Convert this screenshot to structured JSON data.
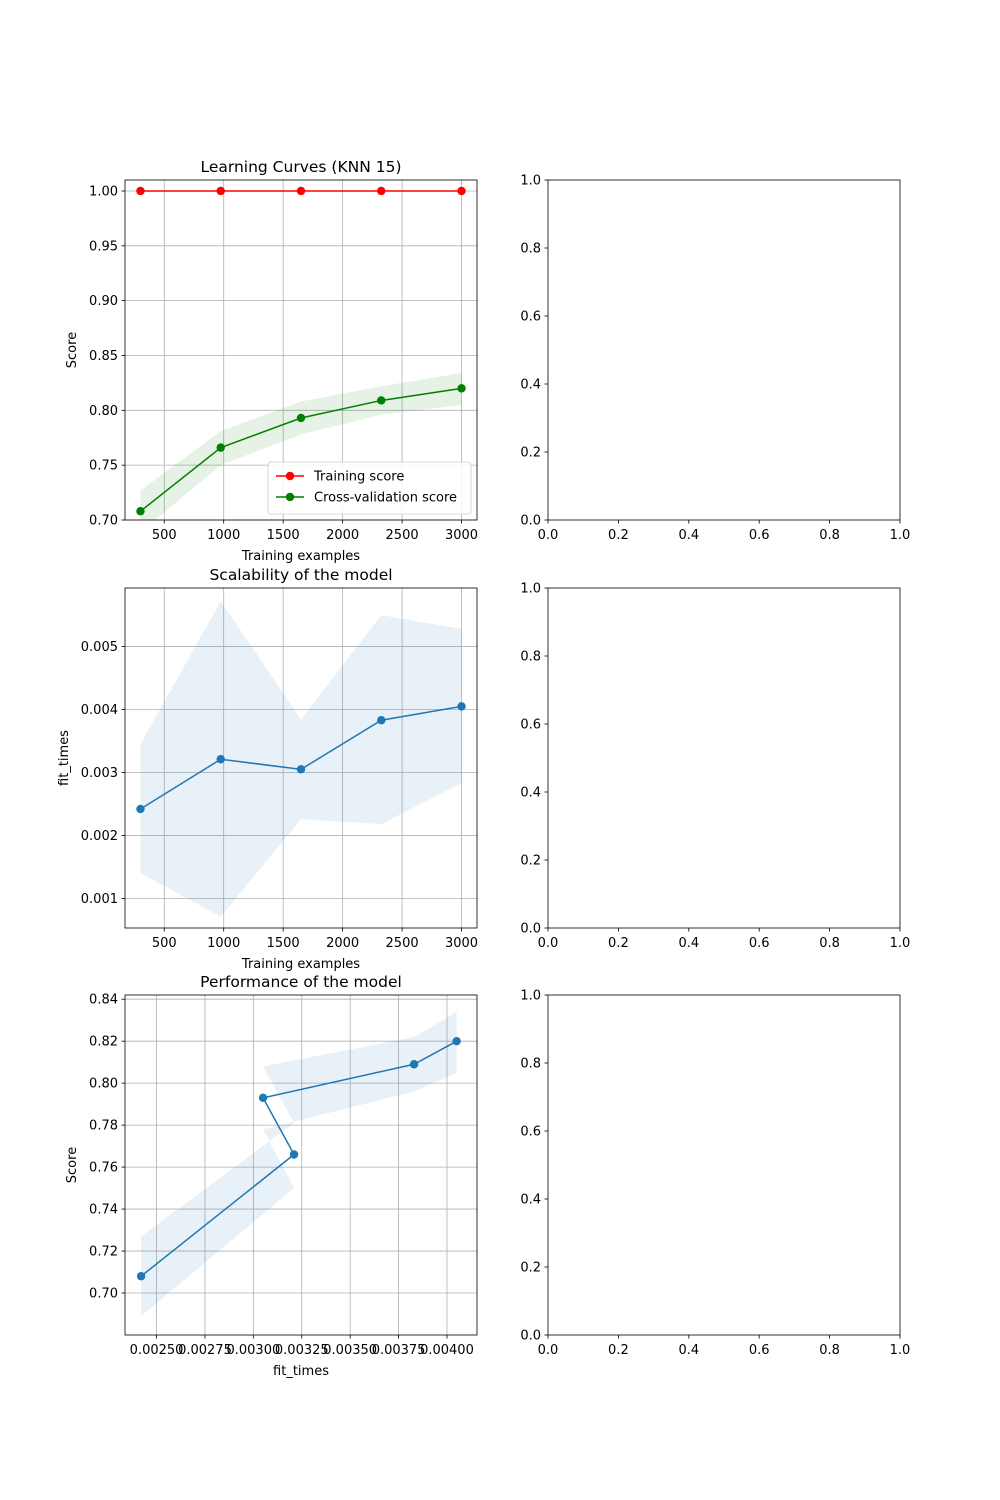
{
  "chart_data": [
    {
      "id": "learning",
      "type": "line",
      "title": "Learning Curves (KNN 15)",
      "xlabel": "Training examples",
      "ylabel": "Score",
      "xlim": [
        170,
        3130
      ],
      "ylim": [
        0.7,
        1.01
      ],
      "xticks": [
        500,
        1000,
        1500,
        2000,
        2500,
        3000
      ],
      "xtick_labels": [
        "500",
        "1000",
        "1500",
        "2000",
        "2500",
        "3000"
      ],
      "yticks": [
        0.7,
        0.75,
        0.8,
        0.85,
        0.9,
        0.95,
        1.0
      ],
      "ytick_labels": [
        "0.70",
        "0.75",
        "0.80",
        "0.85",
        "0.90",
        "0.95",
        "1.00"
      ],
      "grid": true,
      "legend": "lower-right",
      "series": [
        {
          "name": "Training score",
          "color": "#ff0000",
          "x": [
            300,
            975,
            1650,
            2325,
            3000
          ],
          "y": [
            1.0,
            1.0,
            1.0,
            1.0,
            1.0
          ],
          "band_low": [
            1.0,
            1.0,
            1.0,
            1.0,
            1.0
          ],
          "band_high": [
            1.0,
            1.0,
            1.0,
            1.0,
            1.0
          ]
        },
        {
          "name": "Cross-validation score",
          "color": "#008000",
          "x": [
            300,
            975,
            1650,
            2325,
            3000
          ],
          "y": [
            0.708,
            0.766,
            0.793,
            0.809,
            0.82
          ],
          "band_low": [
            0.689,
            0.75,
            0.778,
            0.796,
            0.805
          ],
          "band_high": [
            0.727,
            0.781,
            0.808,
            0.822,
            0.834
          ]
        }
      ]
    },
    {
      "id": "scalability",
      "type": "line",
      "title": "Scalability of the model",
      "xlabel": "Training examples",
      "ylabel": "fit_times",
      "xlim": [
        170,
        3130
      ],
      "ylim": [
        0.00053,
        0.00593
      ],
      "xticks": [
        500,
        1000,
        1500,
        2000,
        2500,
        3000
      ],
      "xtick_labels": [
        "500",
        "1000",
        "1500",
        "2000",
        "2500",
        "3000"
      ],
      "yticks": [
        0.001,
        0.002,
        0.003,
        0.004,
        0.005
      ],
      "ytick_labels": [
        "0.001",
        "0.002",
        "0.003",
        "0.004",
        "0.005"
      ],
      "grid": true,
      "series": [
        {
          "color": "#1f77b4",
          "x": [
            300,
            975,
            1650,
            2325,
            3000
          ],
          "y": [
            0.00242,
            0.00321,
            0.00305,
            0.00383,
            0.00405
          ],
          "band_low": [
            0.0014,
            0.00071,
            0.00226,
            0.00218,
            0.00283
          ],
          "band_high": [
            0.00345,
            0.00572,
            0.00384,
            0.0055,
            0.00528
          ]
        }
      ]
    },
    {
      "id": "performance",
      "type": "line",
      "title": "Performance of the model",
      "xlabel": "fit_times",
      "ylabel": "Score",
      "xlim": [
        0.002337,
        0.004155
      ],
      "ylim": [
        0.68,
        0.842
      ],
      "xticks": [
        0.0025,
        0.00275,
        0.003,
        0.00325,
        0.0035,
        0.00375,
        0.004
      ],
      "xtick_labels": [
        "0.00250",
        "0.00275",
        "0.00300",
        "0.00325",
        "0.00350",
        "0.00375",
        "0.00400"
      ],
      "yticks": [
        0.7,
        0.72,
        0.74,
        0.76,
        0.78,
        0.8,
        0.82,
        0.84
      ],
      "ytick_labels": [
        "0.70",
        "0.72",
        "0.74",
        "0.76",
        "0.78",
        "0.80",
        "0.82",
        "0.84"
      ],
      "grid": true,
      "series": [
        {
          "color": "#1f77b4",
          "x": [
            0.00242,
            0.00321,
            0.00305,
            0.00383,
            0.00405
          ],
          "y": [
            0.708,
            0.766,
            0.793,
            0.809,
            0.82
          ],
          "band_low": [
            0.689,
            0.75,
            0.778,
            0.796,
            0.805
          ],
          "band_high": [
            0.727,
            0.781,
            0.808,
            0.822,
            0.834
          ]
        }
      ]
    },
    {
      "id": "empty-1",
      "type": "line",
      "title": "",
      "xlabel": "",
      "ylabel": "",
      "xlim": [
        0,
        1
      ],
      "ylim": [
        0,
        1
      ],
      "xticks": [
        0,
        0.2,
        0.4,
        0.6,
        0.8,
        1.0
      ],
      "xtick_labels": [
        "0.0",
        "0.2",
        "0.4",
        "0.6",
        "0.8",
        "1.0"
      ],
      "yticks": [
        0,
        0.2,
        0.4,
        0.6,
        0.8,
        1.0
      ],
      "ytick_labels": [
        "0.0",
        "0.2",
        "0.4",
        "0.6",
        "0.8",
        "1.0"
      ],
      "grid": false,
      "series": []
    },
    {
      "id": "empty-2",
      "type": "line",
      "title": "",
      "xlabel": "",
      "ylabel": "",
      "xlim": [
        0,
        1
      ],
      "ylim": [
        0,
        1
      ],
      "xticks": [
        0,
        0.2,
        0.4,
        0.6,
        0.8,
        1.0
      ],
      "xtick_labels": [
        "0.0",
        "0.2",
        "0.4",
        "0.6",
        "0.8",
        "1.0"
      ],
      "yticks": [
        0,
        0.2,
        0.4,
        0.6,
        0.8,
        1.0
      ],
      "ytick_labels": [
        "0.0",
        "0.2",
        "0.4",
        "0.6",
        "0.8",
        "1.0"
      ],
      "grid": false,
      "series": []
    },
    {
      "id": "empty-3",
      "type": "line",
      "title": "",
      "xlabel": "",
      "ylabel": "",
      "xlim": [
        0,
        1
      ],
      "ylim": [
        0,
        1
      ],
      "xticks": [
        0,
        0.2,
        0.4,
        0.6,
        0.8,
        1.0
      ],
      "xtick_labels": [
        "0.0",
        "0.2",
        "0.4",
        "0.6",
        "0.8",
        "1.0"
      ],
      "yticks": [
        0,
        0.2,
        0.4,
        0.6,
        0.8,
        1.0
      ],
      "ytick_labels": [
        "0.0",
        "0.2",
        "0.4",
        "0.6",
        "0.8",
        "1.0"
      ],
      "grid": false,
      "series": []
    }
  ]
}
